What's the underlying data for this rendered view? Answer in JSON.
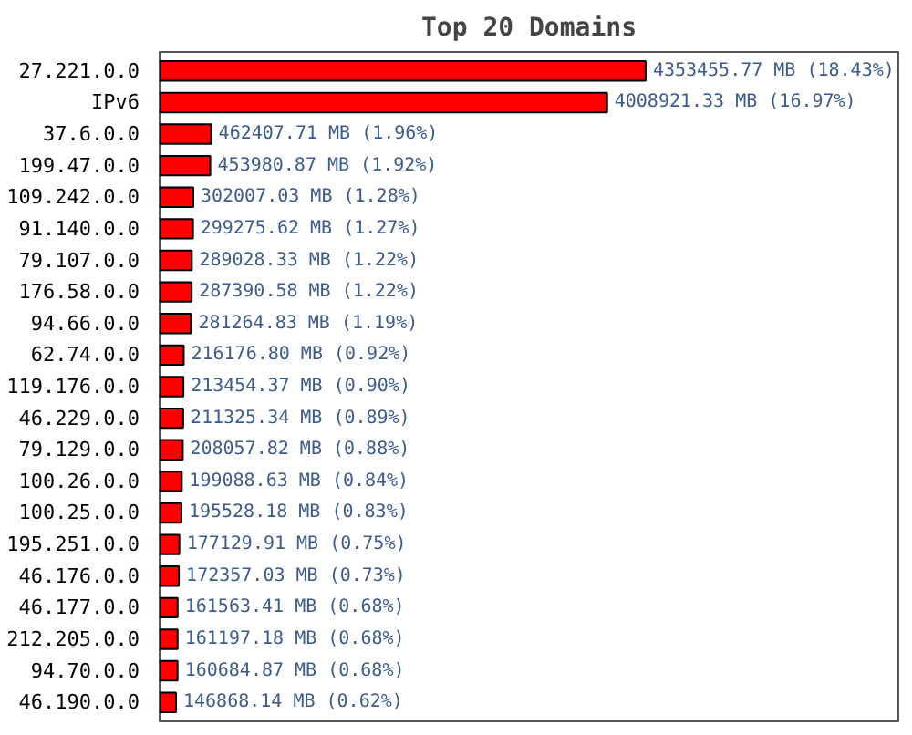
{
  "chart_data": {
    "type": "bar",
    "orientation": "horizontal",
    "title": "Top 20 Domains",
    "color": "#ff0000",
    "categories": [
      "27.221.0.0",
      "IPv6",
      "37.6.0.0",
      "199.47.0.0",
      "109.242.0.0",
      "91.140.0.0",
      "79.107.0.0",
      "176.58.0.0",
      "94.66.0.0",
      "62.74.0.0",
      "119.176.0.0",
      "46.229.0.0",
      "79.129.0.0",
      "100.26.0.0",
      "100.25.0.0",
      "195.251.0.0",
      "46.176.0.0",
      "46.177.0.0",
      "212.205.0.0",
      "94.70.0.0",
      "46.190.0.0"
    ],
    "values": [
      4353455.77,
      4008921.33,
      462407.71,
      453980.87,
      302007.03,
      299275.62,
      289028.33,
      287390.58,
      281264.83,
      216176.8,
      213454.37,
      211325.34,
      208057.82,
      199088.63,
      195528.18,
      177129.91,
      172357.03,
      161563.41,
      161197.18,
      160684.87,
      146868.14
    ],
    "value_labels": [
      "4353455.77 MB (18.43%)",
      "4008921.33 MB (16.97%)",
      "462407.71 MB (1.96%)",
      "453980.87 MB (1.92%)",
      "302007.03 MB (1.28%)",
      "299275.62 MB (1.27%)",
      "289028.33 MB (1.22%)",
      "287390.58 MB (1.22%)",
      "281264.83 MB (1.19%)",
      "216176.80 MB (0.92%)",
      "213454.37 MB (0.90%)",
      "211325.34 MB (0.89%)",
      "208057.82 MB (0.88%)",
      "199088.63 MB (0.84%)",
      "195528.18 MB (0.83%)",
      "177129.91 MB (0.75%)",
      "172357.03 MB (0.73%)",
      "161563.41 MB (0.68%)",
      "161197.18 MB (0.68%)",
      "160684.87 MB (0.68%)",
      "146868.14 MB (0.62%)"
    ],
    "grid": false
  }
}
